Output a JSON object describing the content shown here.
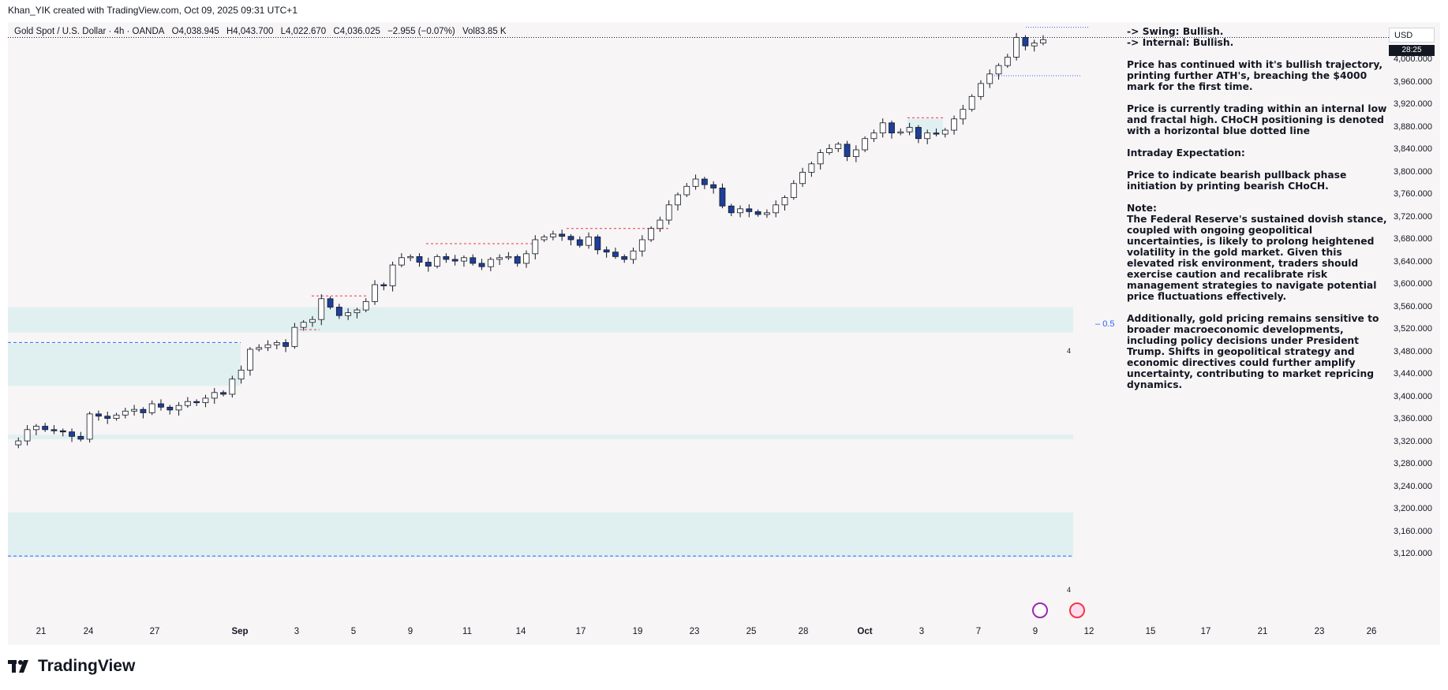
{
  "credit": "Khan_YIK created with TradingView.com, Oct 09, 2025 09:31 UTC+1",
  "symbol_bar": {
    "name": "Gold Spot / U.S. Dollar · 4h · OANDA",
    "open": "O4,038.945",
    "high": "H4,043.700",
    "low": "L4,022.670",
    "close": "C4,036.025",
    "change": "−2.955 (−0.07%)",
    "volume": "Vol83.85 K"
  },
  "currency": "USD",
  "price_tag": "28:25",
  "fib_label": "0.5",
  "zone_labels": [
    "4",
    "4"
  ],
  "notes": {
    "swing": "-> Swing:  Bullish.",
    "internal": "-> Internal:  Bullish.",
    "p1": "Price has continued with it's bullish trajectory, printing further ATH's, breaching the $4000 mark for the first time.",
    "p2": "Price is currently trading within an internal low and fractal high.  CHoCH positioning is denoted with a horizontal blue dotted line",
    "p3": "Intraday Expectation:",
    "p4": "Price to indicate bearish pullback phase initiation by printing bearish CHoCH.",
    "p5_head": "Note:",
    "p5": "The Federal Reserve's sustained dovish stance, coupled with ongoing geopolitical uncertainties, is likely to prolong heightened volatility in the gold market. Given this elevated risk environment, traders should exercise caution and recalibrate risk management strategies to navigate potential price fluctuations effectively.",
    "p6": "Additionally, gold pricing remains sensitive to broader macroeconomic developments, including policy decisions under President Trump. Shifts in geopolitical strategy and economic directives could further amplify uncertainty, contributing to market repricing dynamics."
  },
  "logo_text": "TradingView",
  "chart_data": {
    "type": "candlestick",
    "timeframe": "4h",
    "ylim": [
      3100,
      4050
    ],
    "y_ticks": [
      "4,000.000",
      "3,960.000",
      "3,920.000",
      "3,880.000",
      "3,840.000",
      "3,800.000",
      "3,760.000",
      "3,720.000",
      "3,680.000",
      "3,640.000",
      "3,600.000",
      "3,560.000",
      "3,520.000",
      "3,480.000",
      "3,440.000",
      "3,400.000",
      "3,360.000",
      "3,320.000",
      "3,280.000",
      "3,240.000",
      "3,200.000",
      "3,160.000",
      "3,120.000"
    ],
    "x_ticks": [
      "21",
      "24",
      "27",
      "Sep",
      "3",
      "5",
      "9",
      "11",
      "14",
      "17",
      "19",
      "23",
      "25",
      "28",
      "Oct",
      "3",
      "7",
      "9",
      "12",
      "15",
      "17",
      "21",
      "23",
      "26"
    ],
    "close_path": [
      3315,
      3322,
      3342,
      3348,
      3342,
      3340,
      3338,
      3330,
      3325,
      3370,
      3366,
      3362,
      3368,
      3375,
      3378,
      3372,
      3388,
      3382,
      3377,
      3385,
      3392,
      3390,
      3398,
      3408,
      3405,
      3432,
      3448,
      3485,
      3488,
      3493,
      3497,
      3490,
      3524,
      3533,
      3538,
      3575,
      3560,
      3545,
      3550,
      3555,
      3570,
      3600,
      3598,
      3635,
      3648,
      3650,
      3640,
      3633,
      3650,
      3645,
      3642,
      3648,
      3638,
      3632,
      3645,
      3648,
      3650,
      3638,
      3655,
      3680,
      3685,
      3690,
      3686,
      3680,
      3670,
      3685,
      3662,
      3658,
      3650,
      3645,
      3660,
      3680,
      3700,
      3715,
      3742,
      3760,
      3775,
      3788,
      3778,
      3772,
      3740,
      3728,
      3735,
      3730,
      3725,
      3728,
      3742,
      3755,
      3780,
      3800,
      3815,
      3835,
      3842,
      3850,
      3828,
      3840,
      3860,
      3870,
      3888,
      3870,
      3872,
      3880,
      3860,
      3870,
      3868,
      3875,
      3895,
      3912,
      3935,
      3958,
      3975,
      3990,
      4005,
      4040,
      4025,
      4030,
      4036
    ]
  }
}
